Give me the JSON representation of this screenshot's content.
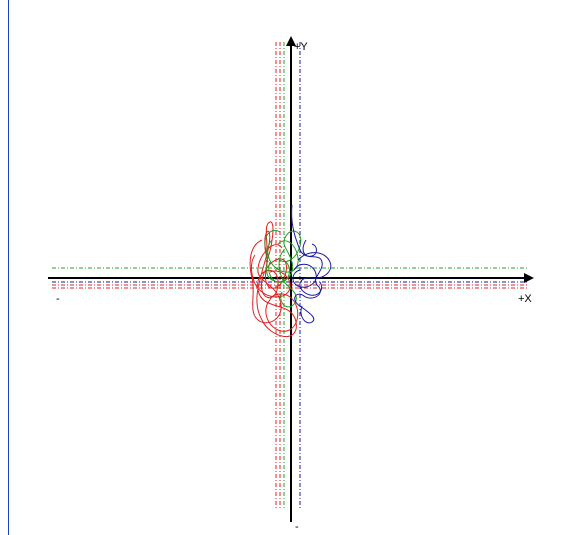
{
  "plot": {
    "labels": {
      "x_pos": "+X",
      "x_neg": "-",
      "y_pos": "+Y",
      "y_neg": "-"
    },
    "colors": {
      "axis": "#000000",
      "red": "#e02020",
      "green": "#20a020",
      "blue": "#1a1aa0",
      "border": "#1f3fbf"
    }
  }
}
